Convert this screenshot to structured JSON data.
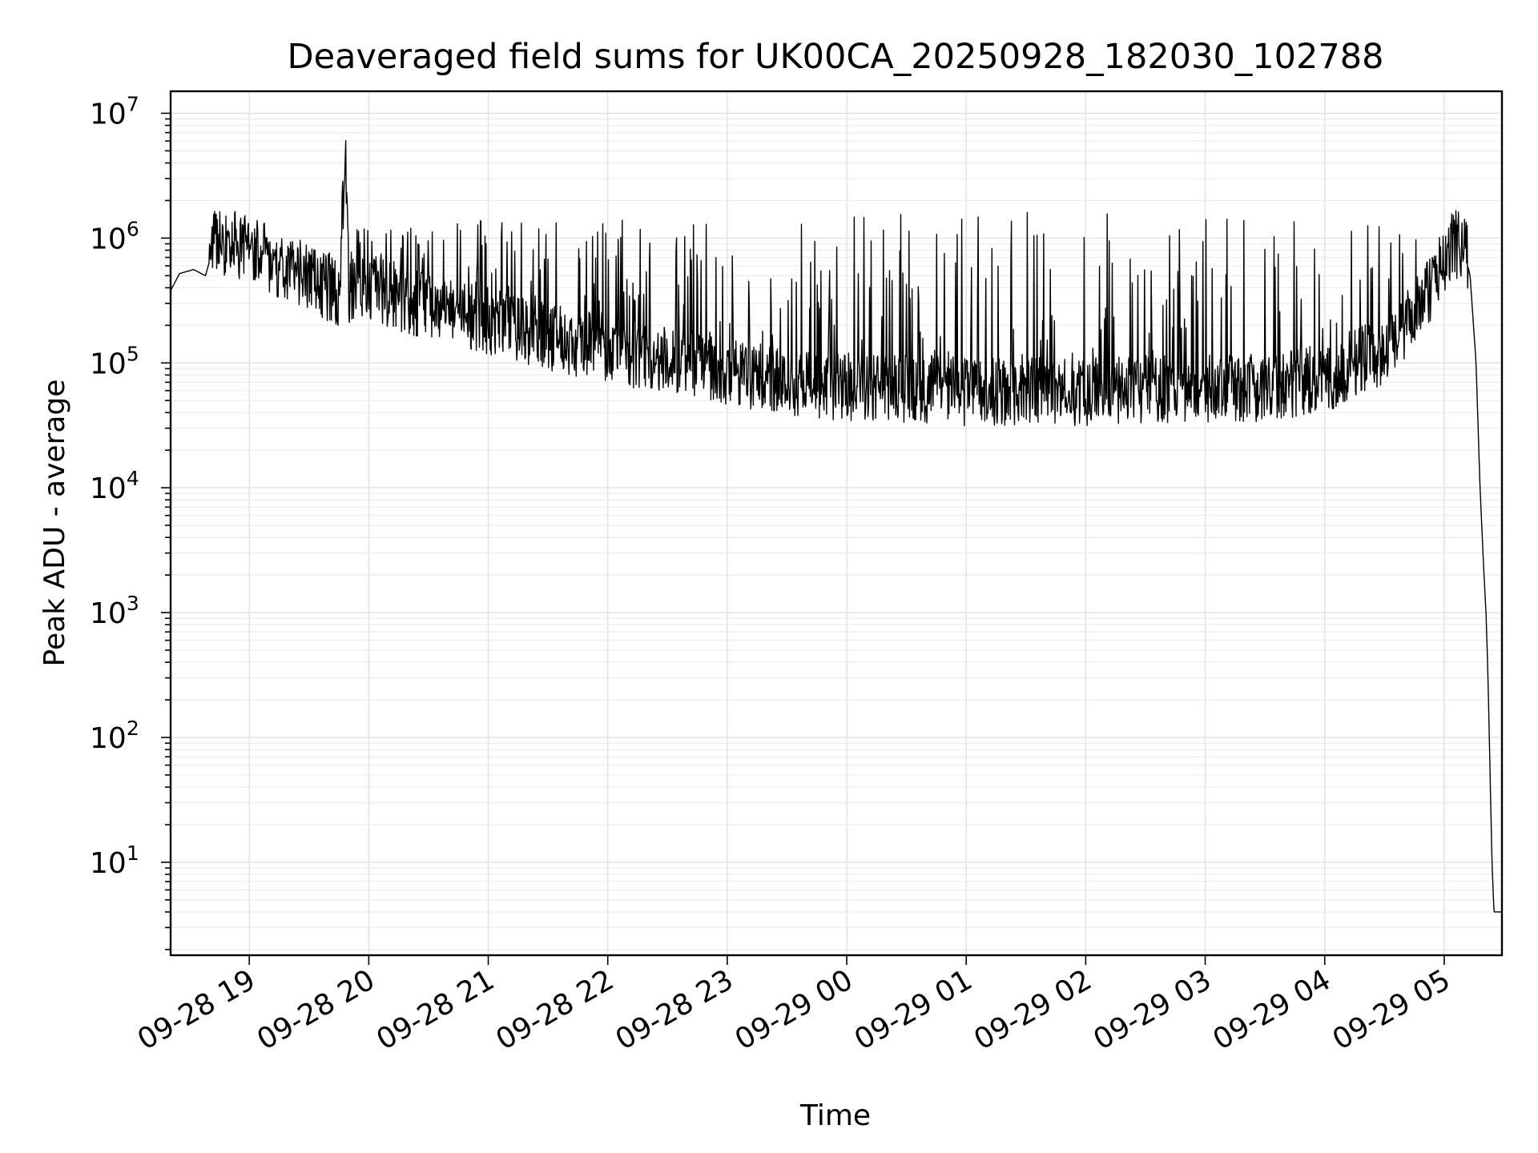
{
  "chart_data": {
    "type": "line",
    "title": "Deaveraged field sums for UK00CA_20250928_182030_102788",
    "xlabel": "Time",
    "ylabel": "Peak ADU - average",
    "yscale": "log",
    "ylim": [
      1.8,
      15000000
    ],
    "xlim": [
      "2025-09-28 18:20:30",
      "2025-09-29 05:29:00"
    ],
    "grid": true,
    "x_ticks": [
      "09-28 19",
      "09-28 20",
      "09-28 21",
      "09-28 22",
      "09-28 23",
      "09-29 00",
      "09-29 01",
      "09-29 02",
      "09-29 03",
      "09-29 04",
      "09-29 05"
    ],
    "y_ticks": [
      {
        "base": "10",
        "exp": "1"
      },
      {
        "base": "10",
        "exp": "2"
      },
      {
        "base": "10",
        "exp": "3"
      },
      {
        "base": "10",
        "exp": "4"
      },
      {
        "base": "10",
        "exp": "5"
      },
      {
        "base": "10",
        "exp": "6"
      },
      {
        "base": "10",
        "exp": "7"
      }
    ],
    "series": [
      {
        "color": "#000000",
        "x": [
          "2025-09-28 18:20:30",
          "2025-09-28 18:25",
          "2025-09-28 18:32",
          "2025-09-28 18:38",
          "2025-09-28 18:40",
          "2025-09-28 18:42",
          "2025-09-28 18:44",
          "2025-09-28 18:48",
          "2025-09-28 18:55",
          "2025-09-28 19:05",
          "2025-09-28 19:15",
          "2025-09-28 19:25",
          "2025-09-28 19:35",
          "2025-09-28 19:45",
          "2025-09-28 19:49",
          "2025-09-28 19:50",
          "2025-09-28 19:55",
          "2025-09-28 20:05",
          "2025-09-28 20:20",
          "2025-09-28 20:40",
          "2025-09-28 21:00",
          "2025-09-28 21:30",
          "2025-09-28 22:00",
          "2025-09-28 22:30",
          "2025-09-28 23:00",
          "2025-09-28 23:30",
          "2025-09-29 00:00",
          "2025-09-29 00:30",
          "2025-09-29 01:00",
          "2025-09-29 01:30",
          "2025-09-29 02:00",
          "2025-09-29 02:30",
          "2025-09-29 03:00",
          "2025-09-29 03:30",
          "2025-09-29 04:00",
          "2025-09-29 04:30",
          "2025-09-29 04:50",
          "2025-09-29 05:00",
          "2025-09-29 05:05",
          "2025-09-29 05:10",
          "2025-09-29 05:13",
          "2025-09-29 05:16",
          "2025-09-29 05:18",
          "2025-09-29 05:20",
          "2025-09-29 05:21",
          "2025-09-29 05:22",
          "2025-09-29 05:24",
          "2025-09-29 05:25",
          "2025-09-29 05:26",
          "2025-09-29 05:27",
          "2025-09-29 05:28"
        ],
        "y": [
          380000,
          520000,
          560000,
          500000,
          650000,
          1100000,
          950000,
          850000,
          800000,
          700000,
          550000,
          500000,
          400000,
          350000,
          7000000,
          350000,
          380000,
          350000,
          300000,
          250000,
          200000,
          150000,
          120000,
          100000,
          80000,
          65000,
          60000,
          58000,
          55000,
          55000,
          55000,
          57000,
          58000,
          60000,
          70000,
          120000,
          300000,
          600000,
          850000,
          800000,
          500000,
          100000,
          10000,
          2000,
          1000,
          300,
          10,
          4,
          4,
          4,
          4
        ],
        "spike_max": [
          1000000,
          1200000,
          1400000,
          1500000,
          1500000,
          1600000,
          1700000,
          1600000,
          1500000,
          1400000
        ]
      }
    ]
  }
}
